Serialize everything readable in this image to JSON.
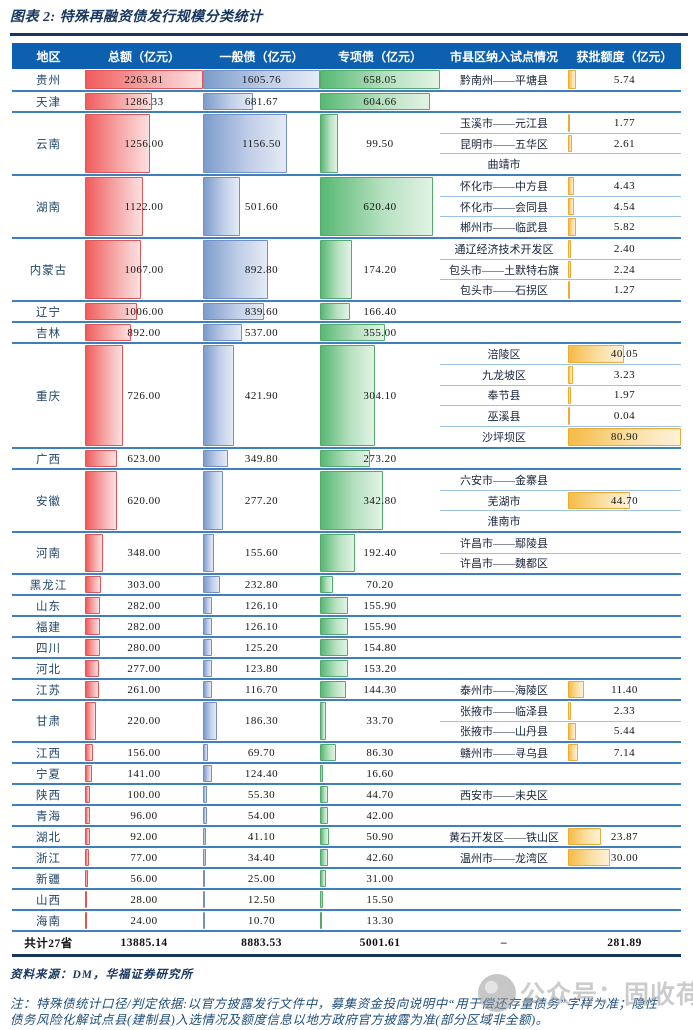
{
  "title": "图表 2: 特殊再融资债发行规模分类统计",
  "colors": {
    "header_bg": "#0C60AF",
    "total_bar": "#F15B5B",
    "general_bond_bar": "#7D9CCB",
    "special_bond_bar": "#57B873",
    "quota_bar": "#F6BB45",
    "title_rule": "#17375E",
    "province_separator": "#3E80BD",
    "subrow_separator": "#9CC2E5"
  },
  "chart_data": {
    "type": "table",
    "header": {
      "region": "地区",
      "total": "总额（亿元）",
      "general": "一般债（亿元）",
      "special": "专项债（亿元）",
      "pilot": "市县区纳入试点情况",
      "quota": "获批额度（亿元）"
    },
    "bar_maxima": {
      "total": 2263.81,
      "general": 1605.76,
      "special": 658.05,
      "quota": 80.9
    },
    "rows": [
      {
        "region": "贵州",
        "total": "2263.81",
        "general": "1605.76",
        "special": "658.05",
        "pilots": [
          {
            "name": "黔南州——平塘县",
            "quota": "5.74"
          }
        ]
      },
      {
        "region": "天津",
        "total": "1286.33",
        "general": "681.67",
        "special": "604.66",
        "pilots": []
      },
      {
        "region": "云南",
        "total": "1256.00",
        "general": "1156.50",
        "special": "99.50",
        "pilots": [
          {
            "name": "玉溪市——元江县",
            "quota": "1.77"
          },
          {
            "name": "昆明市——五华区",
            "quota": "2.61"
          },
          {
            "name": "曲靖市",
            "quota": ""
          }
        ]
      },
      {
        "region": "湖南",
        "total": "1122.00",
        "general": "501.60",
        "special": "620.40",
        "pilots": [
          {
            "name": "怀化市——中方县",
            "quota": "4.43"
          },
          {
            "name": "怀化市——会同县",
            "quota": "4.54"
          },
          {
            "name": "郴州市——临武县",
            "quota": "5.82"
          }
        ]
      },
      {
        "region": "内蒙古",
        "total": "1067.00",
        "general": "892.80",
        "special": "174.20",
        "pilots": [
          {
            "name": "通辽经济技术开发区",
            "quota": "2.40"
          },
          {
            "name": "包头市——土默特右旗",
            "quota": "2.24"
          },
          {
            "name": "包头市——石拐区",
            "quota": "1.27"
          }
        ]
      },
      {
        "region": "辽宁",
        "total": "1006.00",
        "general": "839.60",
        "special": "166.40",
        "pilots": []
      },
      {
        "region": "吉林",
        "total": "892.00",
        "general": "537.00",
        "special": "355.00",
        "pilots": []
      },
      {
        "region": "重庆",
        "total": "726.00",
        "general": "421.90",
        "special": "304.10",
        "pilots": [
          {
            "name": "涪陵区",
            "quota": "40.05"
          },
          {
            "name": "九龙坡区",
            "quota": "3.23"
          },
          {
            "name": "奉节县",
            "quota": "1.97"
          },
          {
            "name": "巫溪县",
            "quota": "0.04"
          },
          {
            "name": "沙坪坝区",
            "quota": "80.90"
          }
        ]
      },
      {
        "region": "广西",
        "total": "623.00",
        "general": "349.80",
        "special": "273.20",
        "pilots": []
      },
      {
        "region": "安徽",
        "total": "620.00",
        "general": "277.20",
        "special": "342.80",
        "pilots": [
          {
            "name": "六安市——金寨县",
            "quota": ""
          },
          {
            "name": "芜湖市",
            "quota": "44.70"
          },
          {
            "name": "淮南市",
            "quota": ""
          }
        ]
      },
      {
        "region": "河南",
        "total": "348.00",
        "general": "155.60",
        "special": "192.40",
        "pilots": [
          {
            "name": "许昌市——鄢陵县",
            "quota": ""
          },
          {
            "name": "许昌市——魏都区",
            "quota": ""
          }
        ]
      },
      {
        "region": "黑龙江",
        "total": "303.00",
        "general": "232.80",
        "special": "70.20",
        "pilots": []
      },
      {
        "region": "山东",
        "total": "282.00",
        "general": "126.10",
        "special": "155.90",
        "pilots": []
      },
      {
        "region": "福建",
        "total": "282.00",
        "general": "126.10",
        "special": "155.90",
        "pilots": []
      },
      {
        "region": "四川",
        "total": "280.00",
        "general": "125.20",
        "special": "154.80",
        "pilots": []
      },
      {
        "region": "河北",
        "total": "277.00",
        "general": "123.80",
        "special": "153.20",
        "pilots": []
      },
      {
        "region": "江苏",
        "total": "261.00",
        "general": "116.70",
        "special": "144.30",
        "pilots": [
          {
            "name": "泰州市——海陵区",
            "quota": "11.40"
          }
        ]
      },
      {
        "region": "甘肃",
        "total": "220.00",
        "general": "186.30",
        "special": "33.70",
        "pilots": [
          {
            "name": "张掖市——临泽县",
            "quota": "2.33"
          },
          {
            "name": "张掖市——山丹县",
            "quota": "5.44"
          }
        ]
      },
      {
        "region": "江西",
        "total": "156.00",
        "general": "69.70",
        "special": "86.30",
        "pilots": [
          {
            "name": "赣州市——寻乌县",
            "quota": "7.14"
          }
        ]
      },
      {
        "region": "宁夏",
        "total": "141.00",
        "general": "124.40",
        "special": "16.60",
        "pilots": []
      },
      {
        "region": "陕西",
        "total": "100.00",
        "general": "55.30",
        "special": "44.70",
        "pilots": [
          {
            "name": "西安市——未央区",
            "quota": ""
          }
        ]
      },
      {
        "region": "青海",
        "total": "96.00",
        "general": "54.00",
        "special": "42.00",
        "pilots": []
      },
      {
        "region": "湖北",
        "total": "92.00",
        "general": "41.10",
        "special": "50.90",
        "pilots": [
          {
            "name": "黄石开发区——铁山区",
            "quota": "23.87"
          }
        ]
      },
      {
        "region": "浙江",
        "total": "77.00",
        "general": "34.40",
        "special": "42.60",
        "pilots": [
          {
            "name": "温州市——龙湾区",
            "quota": "30.00"
          }
        ]
      },
      {
        "region": "新疆",
        "total": "56.00",
        "general": "25.00",
        "special": "31.00",
        "pilots": []
      },
      {
        "region": "山西",
        "total": "28.00",
        "general": "12.50",
        "special": "15.50",
        "pilots": []
      },
      {
        "region": "海南",
        "total": "24.00",
        "general": "10.70",
        "special": "13.30",
        "pilots": []
      }
    ],
    "total_row": {
      "region": "共计27省",
      "total": "13885.14",
      "general": "8883.53",
      "special": "5001.61",
      "pilot": "–",
      "quota": "281.89"
    }
  },
  "footer": {
    "source": "资料来源：DM，华福证券研究所",
    "note": "注：特殊债统计口径/判定依据:以官方披露发行文件中，募集资金投向说明中“用于偿还存量债务”字样为准；隐性债务风险化解试点县(建制县)入选情况及额度信息以地方政府官方披露为准(部分区域非全额)。"
  },
  "watermark": {
    "text": "公众号：固收荷语"
  }
}
